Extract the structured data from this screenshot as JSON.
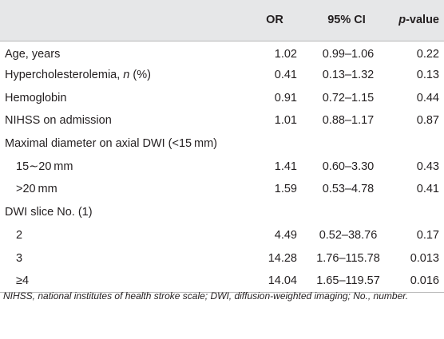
{
  "table": {
    "headers": {
      "label": "",
      "or": "OR",
      "ci": "95% CI",
      "p_prefix": "p",
      "p_suffix": "-value"
    },
    "rows": [
      {
        "label": "Age, years",
        "or": "1.02",
        "ci": "0.99–1.06",
        "p": "0.22"
      },
      {
        "label_pre": "Hypercholesterolemia, ",
        "label_ital": "n",
        "label_post": " (%)",
        "or": "0.41",
        "ci": "0.13–1.32",
        "p": "0.13"
      },
      {
        "label": "Hemoglobin",
        "or": "0.91",
        "ci": "0.72–1.15",
        "p": "0.44"
      },
      {
        "label": "NIHSS on admission",
        "or": "1.01",
        "ci": "0.88–1.17",
        "p": "0.87"
      },
      {
        "label": "Maximal diameter on axial DWI (<15 mm)",
        "or": "",
        "ci": "",
        "p": ""
      },
      {
        "label": "15∼20 mm",
        "or": "1.41",
        "ci": "0.60–3.30",
        "p": "0.43"
      },
      {
        "label": ">20 mm",
        "or": "1.59",
        "ci": "0.53–4.78",
        "p": "0.41"
      },
      {
        "label": "DWI slice No. (1)",
        "or": "",
        "ci": "",
        "p": ""
      },
      {
        "label": "2",
        "or": "4.49",
        "ci": "0.52–38.76",
        "p": "0.17"
      },
      {
        "label": "3",
        "or": "14.28",
        "ci": "1.76–115.78",
        "p": "0.013"
      },
      {
        "label": "≥4",
        "or": "14.04",
        "ci": "1.65–119.57",
        "p": "0.016"
      }
    ]
  },
  "footnote": "NIHSS, national institutes of health stroke scale; DWI, diffusion-weighted imaging; No., number."
}
